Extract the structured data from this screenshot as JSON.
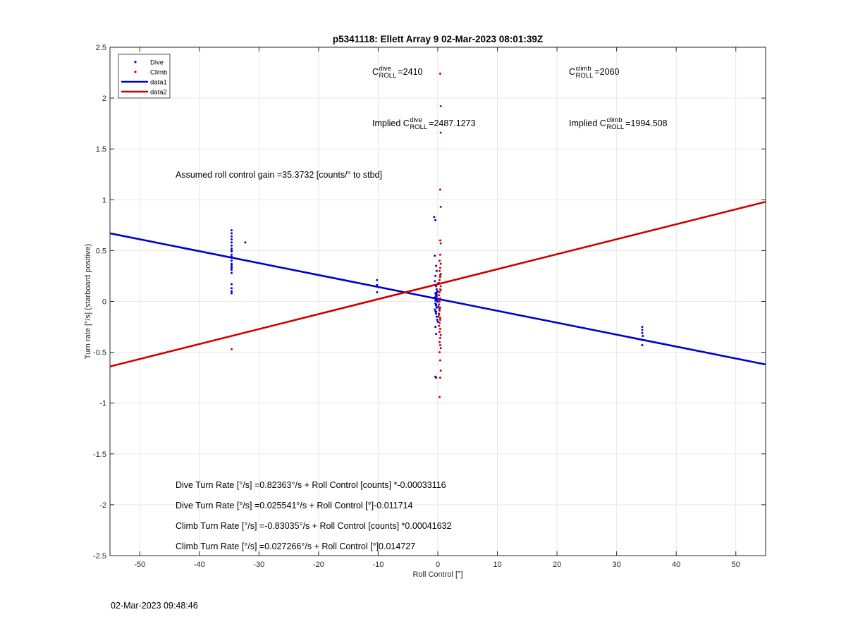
{
  "chart_data": {
    "type": "scatter",
    "title": "p5341118: Ellett Array 9 02-Mar-2023 08:01:39Z",
    "xlabel": "Roll Control [°]",
    "ylabel": "Turn rate [°/s] (starboard positive)",
    "xlim": [
      -55,
      55
    ],
    "ylim": [
      -2.5,
      2.5
    ],
    "xticks": [
      -50,
      -40,
      -30,
      -20,
      -10,
      0,
      10,
      20,
      30,
      40,
      50
    ],
    "yticks": [
      -2.5,
      -2,
      -1.5,
      -1,
      -0.5,
      0,
      0.5,
      1,
      1.5,
      2,
      2.5
    ],
    "grid": true,
    "legend_position": "top-left",
    "legend": [
      "Dive",
      "Climb",
      "data1",
      "data2"
    ],
    "series": [
      {
        "name": "Dive",
        "kind": "points",
        "color": "#0000cc",
        "x": [
          -34.6,
          -34.6,
          -34.6,
          -34.6,
          -34.6,
          -34.6,
          -34.6,
          -34.6,
          -34.6,
          -34.6,
          -34.6,
          -34.6,
          -34.6,
          -34.6,
          -34.6,
          -34.6,
          -34.6,
          -34.6,
          -34.6,
          -34.6,
          -34.6,
          -34.6,
          -34.6,
          -32.3,
          -10.2,
          -10.2,
          -10.2,
          34.3,
          34.3,
          34.3,
          34.4,
          34.4,
          34.3,
          -0.6,
          -0.4,
          -0.5,
          -0.3,
          -0.2,
          -0.4,
          -0.5,
          -0.3,
          -0.2,
          0.0,
          -0.4,
          -0.3,
          -0.5,
          -0.2,
          0.1,
          -0.4,
          -0.3,
          -0.2,
          -0.5,
          -0.4,
          -0.3,
          -0.2,
          -0.1,
          0.0,
          -0.4,
          -0.3,
          -0.2,
          -0.1,
          -0.3,
          -0.2,
          -0.4,
          0.1,
          -0.3,
          -0.2,
          0.2,
          -0.4,
          -0.3,
          0.1,
          -0.2,
          0.3
        ],
        "y": [
          0.7,
          0.67,
          0.64,
          0.61,
          0.58,
          0.55,
          0.52,
          0.49,
          0.46,
          0.43,
          0.4,
          0.37,
          0.34,
          0.31,
          0.28,
          0.44,
          0.5,
          0.36,
          0.17,
          0.13,
          0.1,
          0.08,
          0.33,
          0.58,
          0.21,
          0.16,
          0.09,
          -0.25,
          -0.28,
          -0.31,
          -0.34,
          -0.38,
          -0.43,
          0.83,
          0.8,
          0.45,
          0.35,
          0.3,
          0.25,
          0.2,
          0.15,
          0.12,
          0.1,
          0.08,
          0.06,
          0.04,
          0.02,
          0.0,
          -0.02,
          -0.04,
          -0.06,
          -0.08,
          -0.1,
          -0.12,
          -0.15,
          -0.18,
          -0.2,
          -0.25,
          -0.32,
          0.05,
          0.0,
          -0.03,
          0.03,
          0.01,
          -0.05,
          -0.1,
          0.07,
          -0.13,
          -0.74,
          -0.75,
          0.18,
          0.09,
          -0.07
        ]
      },
      {
        "name": "Climb",
        "kind": "points",
        "color": "#cc0000",
        "x": [
          -34.6,
          0.4,
          0.5,
          0.5,
          0.4,
          0.5,
          0.4,
          0.5,
          0.4,
          0.3,
          0.5,
          0.4,
          0.3,
          0.5,
          0.4,
          0.3,
          0.2,
          0.5,
          0.4,
          0.3,
          0.2,
          0.4,
          0.3,
          0.2,
          0.4,
          0.3,
          0.2,
          0.1,
          0.4,
          0.3,
          0.2,
          0.4,
          0.3,
          0.5,
          0.4,
          0.3,
          0.4,
          0.5,
          0.3,
          0.4,
          0.5,
          0.4,
          0.3,
          0.4,
          0.5,
          0.4
        ],
        "y": [
          -0.47,
          2.24,
          1.92,
          1.66,
          1.1,
          0.93,
          0.6,
          0.57,
          0.46,
          0.4,
          0.37,
          0.33,
          0.3,
          0.27,
          0.24,
          0.21,
          0.18,
          0.15,
          0.12,
          0.09,
          0.06,
          0.03,
          0.0,
          -0.03,
          -0.06,
          -0.09,
          -0.12,
          -0.15,
          -0.18,
          -0.21,
          -0.24,
          -0.27,
          -0.3,
          -0.33,
          -0.36,
          -0.4,
          -0.43,
          -0.46,
          -0.5,
          -0.58,
          -0.68,
          -0.75,
          -0.94,
          0.26,
          0.11,
          -0.16
        ]
      },
      {
        "name": "data1",
        "kind": "line",
        "color": "#0000cc",
        "x": [
          -55,
          55
        ],
        "y": [
          0.67,
          -0.62
        ]
      },
      {
        "name": "data2",
        "kind": "line",
        "color": "#cc0000",
        "x": [
          -55,
          55
        ],
        "y": [
          -0.64,
          0.98
        ]
      }
    ],
    "annotations": {
      "c_dive": {
        "prefix": "",
        "base": "C",
        "sup": "dive",
        "sub": "ROLL",
        "value": "=2410"
      },
      "c_climb": {
        "prefix": "",
        "base": "C",
        "sup": "climb",
        "sub": "ROLL",
        "value": "=2060"
      },
      "implied_dive": {
        "prefix": "Implied ",
        "base": "C",
        "sup": "dive",
        "sub": "ROLL",
        "value": "=2487.1273"
      },
      "implied_climb": {
        "prefix": "Implied ",
        "base": "C",
        "sup": "climb",
        "sub": "ROLL",
        "value": "=1994.508"
      },
      "gain": "Assumed roll control gain =35.3732 [counts/° to stbd]",
      "dive_counts": "Dive Turn Rate [°/s] =0.82363°/s + Roll Control [counts] *-0.00033116",
      "dive_deg": "Dive Turn Rate [°/s] =0.025541°/s + Roll Control [°]-0.011714",
      "climb_counts": "Climb Turn Rate [°/s] =-0.83035°/s + Roll Control [counts] *0.00041632",
      "climb_deg": "Climb Turn Rate [°/s] =0.027266°/s + Roll Control [°]0.014727"
    }
  },
  "footer_timestamp": "02-Mar-2023 09:48:46"
}
